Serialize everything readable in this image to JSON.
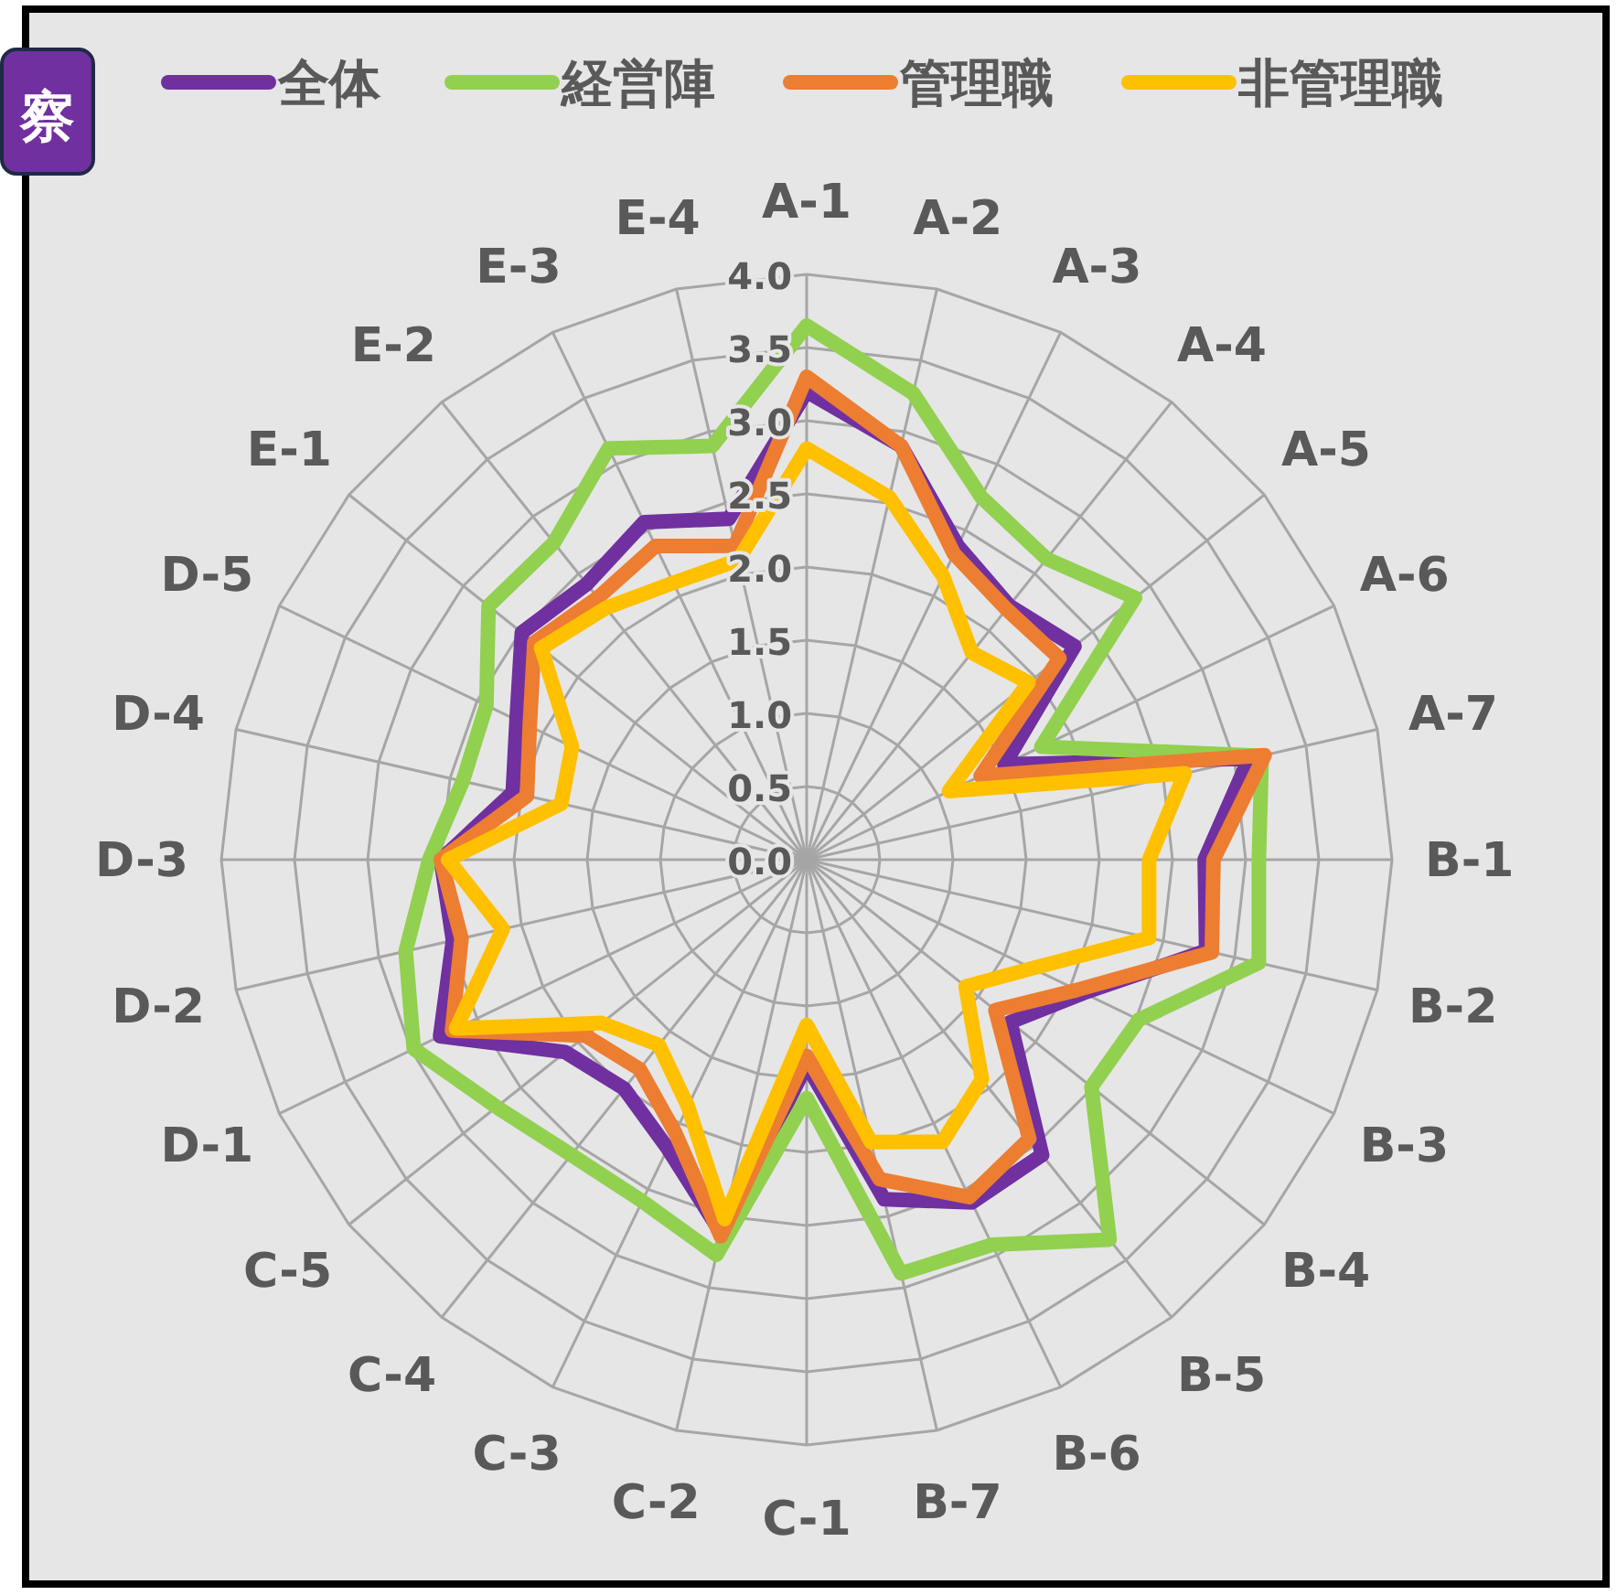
{
  "chart_data": {
    "type": "radar",
    "annotations": [
      "察"
    ],
    "categories": [
      "A-1",
      "A-2",
      "A-3",
      "A-4",
      "A-5",
      "A-6",
      "A-7",
      "B-1",
      "B-2",
      "B-3",
      "B-4",
      "B-5",
      "B-6",
      "B-7",
      "C-1",
      "C-2",
      "C-3",
      "C-4",
      "C-5",
      "D-1",
      "D-2",
      "D-3",
      "D-4",
      "D-5",
      "E-1",
      "E-2",
      "E-3",
      "E-4"
    ],
    "series": [
      {
        "name": "全体",
        "color": "#7030a0",
        "values": [
          3.2,
          2.9,
          2.38,
          2.22,
          2.34,
          1.5,
          3.1,
          2.72,
          2.8,
          2.1,
          1.78,
          2.58,
          2.6,
          2.38,
          1.4,
          2.62,
          2.19,
          2.0,
          2.11,
          2.78,
          2.48,
          2.5,
          2.06,
          2.2,
          2.49,
          2.41,
          2.56,
          2.39
        ]
      },
      {
        "name": "経営陣",
        "color": "#92d050",
        "values": [
          3.65,
          3.27,
          2.75,
          2.63,
          2.87,
          1.78,
          3.19,
          3.09,
          3.17,
          2.52,
          2.49,
          3.32,
          2.92,
          2.9,
          1.63,
          2.77,
          2.59,
          2.58,
          2.71,
          2.98,
          2.81,
          2.58,
          2.41,
          2.43,
          2.78,
          2.77,
          3.12,
          2.9
        ]
      },
      {
        "name": "管理職",
        "color": "#ed7d31",
        "values": [
          3.3,
          2.9,
          2.32,
          2.19,
          2.21,
          1.32,
          3.21,
          2.78,
          2.84,
          2.05,
          1.65,
          2.44,
          2.56,
          2.24,
          1.34,
          2.64,
          2.07,
          1.83,
          1.93,
          2.69,
          2.42,
          2.5,
          1.96,
          2.1,
          2.38,
          2.29,
          2.38,
          2.2
        ]
      },
      {
        "name": "非管理職",
        "color": "#ffc000",
        "values": [
          2.81,
          2.54,
          2.15,
          1.81,
          1.94,
          1.08,
          2.65,
          2.34,
          2.4,
          1.71,
          1.39,
          1.92,
          2.14,
          1.98,
          1.13,
          2.52,
          1.87,
          1.62,
          1.79,
          2.66,
          2.13,
          2.45,
          1.72,
          1.78,
          2.32,
          2.2,
          2.1,
          2.1
        ]
      }
    ],
    "ylim": [
      0,
      4
    ],
    "yticks": [
      {
        "value": 0,
        "label": "0.0"
      },
      {
        "value": 0.5,
        "label": "0.5"
      },
      {
        "value": 1,
        "label": "1.0"
      },
      {
        "value": 1.5,
        "label": "1.5"
      },
      {
        "value": 2,
        "label": "2.0"
      },
      {
        "value": 2.5,
        "label": "2.5"
      },
      {
        "value": 3,
        "label": "3.0"
      },
      {
        "value": 3.5,
        "label": "3.5"
      },
      {
        "value": 4,
        "label": "4.0"
      }
    ],
    "grid": true,
    "legend": "top",
    "marker": "none",
    "line_style": "solid"
  }
}
